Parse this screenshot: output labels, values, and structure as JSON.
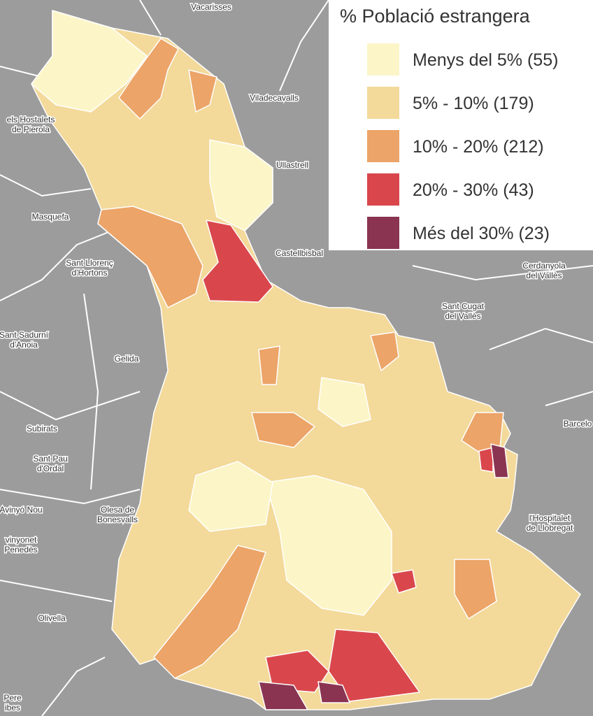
{
  "title": "% Població estrangera",
  "legend": [
    {
      "label": "Menys del 5% (55)",
      "color": "#fcf5c7"
    },
    {
      "label": "5% - 10% (179)",
      "color": "#f3d99a"
    },
    {
      "label": "10% - 20% (212)",
      "color": "#eca468"
    },
    {
      "label": "20% - 30% (43)",
      "color": "#d9474c"
    },
    {
      "label": "Més del 30% (23)",
      "color": "#8a3452"
    }
  ],
  "places": [
    {
      "lines": [
        "Vacarisses"
      ]
    },
    {
      "lines": [
        "Viladecavalls"
      ]
    },
    {
      "lines": [
        "els Hostalets",
        "de Pierola"
      ]
    },
    {
      "lines": [
        "Ullastrell"
      ]
    },
    {
      "lines": [
        "Masquefa"
      ]
    },
    {
      "lines": [
        "Castellbisbal"
      ]
    },
    {
      "lines": [
        "Sant Llorenç",
        "d'Hortons"
      ]
    },
    {
      "lines": [
        "Cerdanyola",
        "del Vallès"
      ]
    },
    {
      "lines": [
        "Sant Cugat",
        "del Vallès"
      ]
    },
    {
      "lines": [
        "Sant Sadurní",
        "d'Anoia"
      ]
    },
    {
      "lines": [
        "Gelida"
      ]
    },
    {
      "lines": [
        "Subirats"
      ]
    },
    {
      "lines": [
        "Barcelo"
      ]
    },
    {
      "lines": [
        "Sant Pau",
        "d'Ordal"
      ]
    },
    {
      "lines": [
        "Avinyó Nou"
      ]
    },
    {
      "lines": [
        "Olesa de",
        "Bonesvalls"
      ]
    },
    {
      "lines": [
        "l'Hospitalet",
        "de Llobregat"
      ]
    },
    {
      "lines": [
        "vinyonet",
        "Penedès"
      ]
    },
    {
      "lines": [
        "Olivella"
      ]
    },
    {
      "lines": [
        "Pere",
        "ibes"
      ]
    }
  ]
}
